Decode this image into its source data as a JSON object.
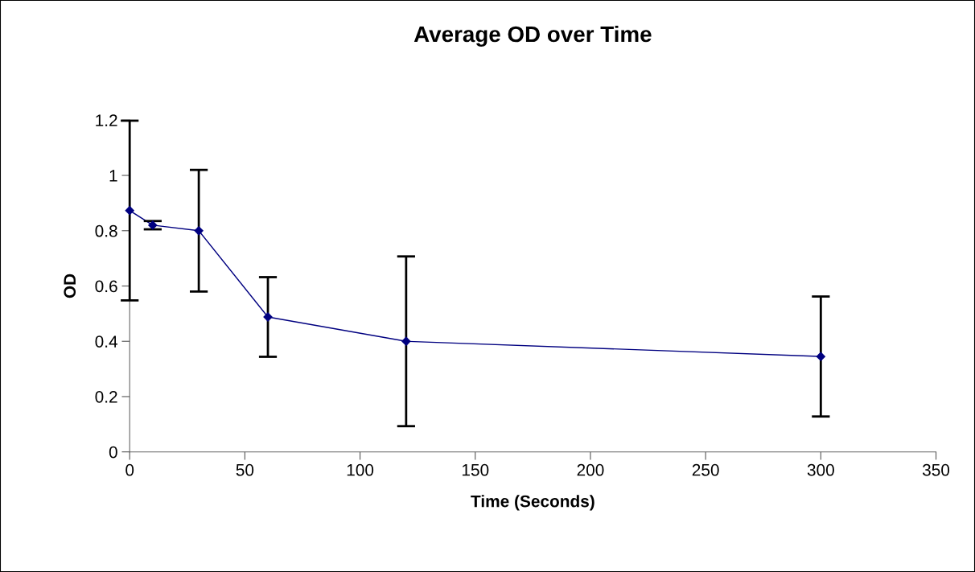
{
  "chart_data": {
    "type": "line",
    "title": "Average OD over Time",
    "xlabel": "Time (Seconds)",
    "ylabel": "OD",
    "x": [
      0,
      10,
      30,
      60,
      120,
      300
    ],
    "series": [
      {
        "color": "#000080",
        "values": [
          0.873,
          0.82,
          0.8,
          0.488,
          0.4,
          0.345
        ],
        "errors": [
          0.325,
          0.015,
          0.22,
          0.144,
          0.307,
          0.217
        ]
      }
    ],
    "xlim": [
      0,
      350
    ],
    "xticks": [
      0,
      50,
      100,
      150,
      200,
      250,
      300,
      350
    ],
    "ylim": [
      0,
      1.2
    ],
    "yticks": [
      0,
      {
        "value": 0.2,
        "label": "0.2"
      },
      {
        "value": 0.4,
        "label": "0.4"
      },
      {
        "value": 0.6,
        "label": "0.6"
      },
      {
        "value": 0.8,
        "label": "0.8"
      },
      1,
      {
        "value": 1.2,
        "label": "1.2"
      }
    ],
    "marker": "diamond",
    "grid": false,
    "legend": false
  }
}
